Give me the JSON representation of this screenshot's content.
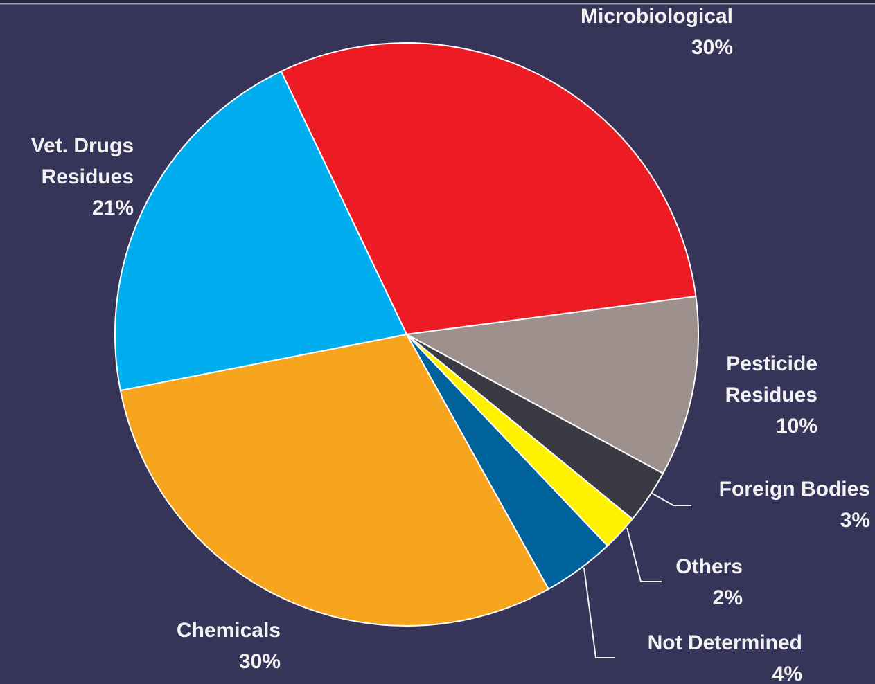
{
  "chart_data": {
    "type": "pie",
    "categories": [
      "Microbiological",
      "Pesticide Residues",
      "Foreign Bodies",
      "Others",
      "Not Determined",
      "Chemicals",
      "Vet. Drugs Residues"
    ],
    "values": [
      30,
      10,
      3,
      2,
      4,
      30,
      21
    ],
    "value_labels": [
      "30%",
      "10%",
      "3%",
      "2%",
      "4%",
      "30%",
      "21%"
    ],
    "colors": [
      "#ed1c24",
      "#9e918d",
      "#3a3a44",
      "#fff200",
      "#00629b",
      "#f7a51e",
      "#00aeef"
    ]
  }
}
